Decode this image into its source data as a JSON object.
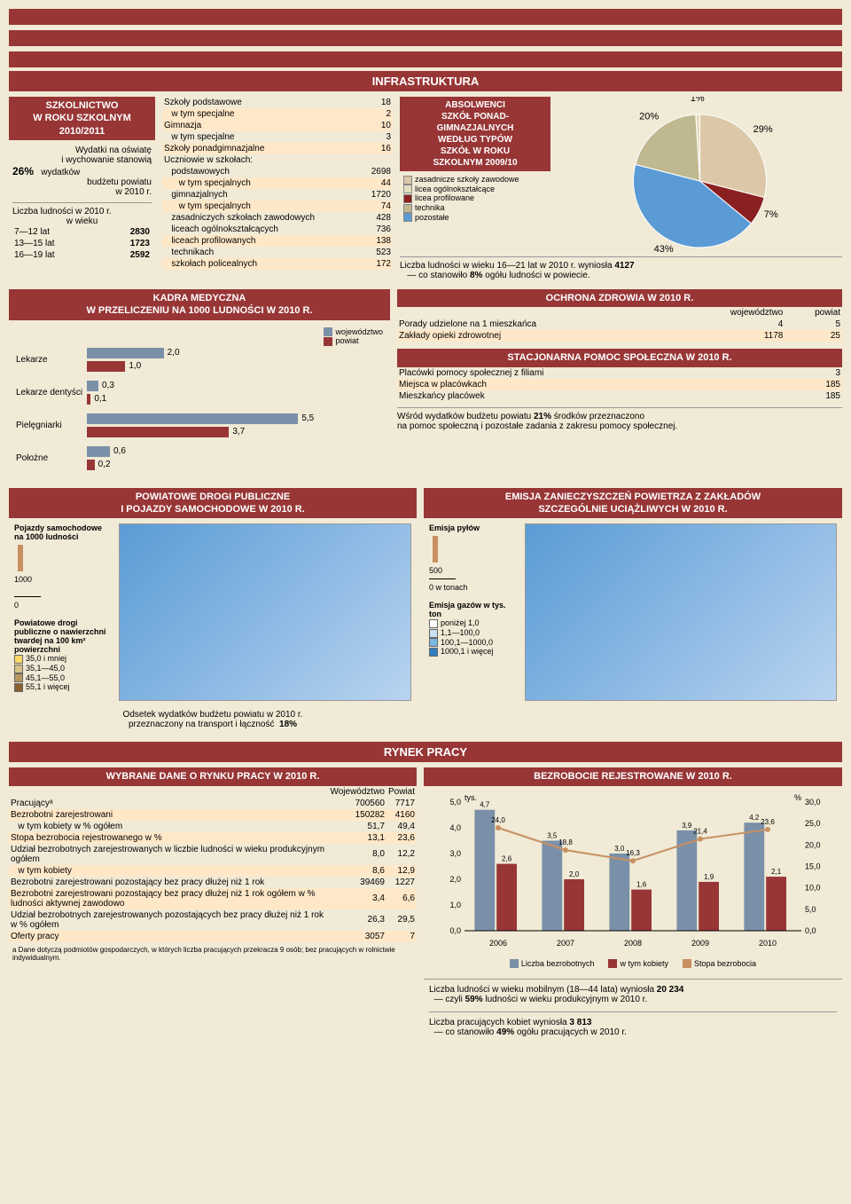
{
  "topSection": "INFRASTRUKTURA",
  "schoolBox": {
    "title": "SZKOLNICTWO\nW ROKU SZKOLNYM\n2010/2011",
    "line1": "Wydatki na oświatę",
    "line2": "i wychowanie stanowią",
    "pct": "26%",
    "line3": "wydatków",
    "line4": "budżetu powiatu",
    "line5": "w 2010 r.",
    "popLine": "Liczba ludności w 2010 r.",
    "popLine2": "w wieku",
    "ages": [
      {
        "r": "7—12 lat",
        "v": "2830"
      },
      {
        "r": "13—15 lat",
        "v": "1723"
      },
      {
        "r": "16—19 lat",
        "v": "2592"
      }
    ]
  },
  "schoolsTable": [
    {
      "l": "Szkoły podstawowe",
      "v": "18",
      "alt": false
    },
    {
      "l": "   w tym specjalne",
      "v": "2",
      "alt": true
    },
    {
      "l": "Gimnazja",
      "v": "10",
      "alt": true
    },
    {
      "l": "   w tym specjalne",
      "v": "3",
      "alt": false
    },
    {
      "l": "Szkoły ponadgimnazjalne",
      "v": "16",
      "alt": true
    },
    {
      "l": "Uczniowie w szkołach:",
      "v": "",
      "alt": false
    },
    {
      "l": "   podstawowych",
      "v": "2698",
      "alt": false
    },
    {
      "l": "      w tym specjalnych",
      "v": "44",
      "alt": true
    },
    {
      "l": "   gimnazjalnych",
      "v": "1720",
      "alt": false
    },
    {
      "l": "      w tym specjalnych",
      "v": "74",
      "alt": true
    },
    {
      "l": "   zasadniczych szkołach zawodowych",
      "v": "428",
      "alt": false
    },
    {
      "l": "   liceach ogólnokształcących",
      "v": "736",
      "alt": false
    },
    {
      "l": "   liceach profilowanych",
      "v": "138",
      "alt": true
    },
    {
      "l": "   technikach",
      "v": "523",
      "alt": false
    },
    {
      "l": "   szkołach policealnych",
      "v": "172",
      "alt": true
    }
  ],
  "gradBox": {
    "title": "ABSOLWENCI\nSZKÓŁ PONAD-\nGIMNAZJALNYCH\nWEDŁUG TYPÓW\nSZKÓŁ W ROKU\nSZKOLNYM 2009/10",
    "legend": [
      {
        "c": "#dcc8a8",
        "t": "zasadnicze szkoły zawodowe"
      },
      {
        "c": "#e8dcc0",
        "t": "licea ogólnokształcące"
      },
      {
        "c": "#8b2020",
        "t": "licea profilowane"
      },
      {
        "c": "#c0b890",
        "t": "technika"
      },
      {
        "c": "#5a9bd5",
        "t": "pozostałe"
      }
    ],
    "pie": {
      "slices": [
        {
          "pct": 29,
          "color": "#dcc8a8",
          "label": "29%"
        },
        {
          "pct": 7,
          "color": "#8b2020",
          "label": "7%"
        },
        {
          "pct": 43,
          "color": "#5a9bd5",
          "label": "43%"
        },
        {
          "pct": 20,
          "color": "#c0b890",
          "label": "20%"
        },
        {
          "pct": 1,
          "color": "#e8dcc0",
          "label": "1%"
        }
      ]
    },
    "footLine1": "Liczba ludności w wieku 16—21 lat w 2010 r. wyniosła",
    "footVal1": "4127",
    "footLine2": "— co stanowiło",
    "footPct": "8%",
    "footLine3": "ogółu ludności w powiecie."
  },
  "medBox": {
    "title": "KADRA MEDYCZNA\nW PRZELICZENIU NA 1000 LUDNOŚCI W 2010 R.",
    "legend": {
      "w": "województwo",
      "p": "powiat",
      "wc": "#7a90a8",
      "pc": "#983636"
    },
    "cats": [
      "Lekarze",
      "Lekarze dentyści",
      "Pielęgniarki",
      "Położne"
    ],
    "data": [
      {
        "w": 2.0,
        "p": 1.0
      },
      {
        "w": 0.3,
        "p": 0.1
      },
      {
        "w": 5.5,
        "p": 3.7
      },
      {
        "w": 0.6,
        "p": 0.2
      }
    ],
    "max": 6
  },
  "healthBox": {
    "title": "OCHRONA ZDROWIA W 2010 R.",
    "hdr": {
      "c1": "",
      "c2": "województwo",
      "c3": "powiat"
    },
    "rows": [
      {
        "l": "Porady udzielone na 1 mieszkańca",
        "w": "4",
        "p": "5"
      },
      {
        "l": "Zakłady opieki zdrowotnej",
        "w": "1178",
        "p": "25"
      }
    ]
  },
  "socialBox": {
    "title": "STACJONARNA POMOC SPOŁECZNA W 2010 R.",
    "rows": [
      {
        "l": "Placówki pomocy społecznej z filiami",
        "v": "3"
      },
      {
        "l": "Miejsca w placówkach",
        "v": "185"
      },
      {
        "l": "Mieszkańcy placówek",
        "v": "185"
      }
    ],
    "foot1a": "Wśród wydatków budżetu powiatu",
    "foot1pct": "21%",
    "foot1b": "środków przeznaczono",
    "foot2": "na pomoc społeczną i pozostałe zadania z zakresu pomocy społecznej."
  },
  "roadsBox": {
    "title": "POWIATOWE DROGI PUBLICZNE\nI POJAZDY SAMOCHODOWE W 2010 R.",
    "leftLegend": {
      "l1": "Pojazdy samochodowe na 1000 ludności",
      "l1v": "1000",
      "l2": "Powiatowe drogi publiczne o nawierzchni twardej na 100 km² powierzchni",
      "items": [
        {
          "c": "#ffd966",
          "t": "35,0 i mniej"
        },
        {
          "c": "#d6c088",
          "t": "35,1—45,0"
        },
        {
          "c": "#b89860",
          "t": "45,1—55,0"
        },
        {
          "c": "#8b6030",
          "t": "55,1 i więcej"
        }
      ]
    },
    "foot1": "Odsetek wydatków budżetu powiatu w 2010 r.",
    "foot2": "przeznaczony na transport i łączność",
    "footPct": "18%"
  },
  "emissionBox": {
    "title": "EMISJA ZANIECZYSZCZEŃ POWIETRZA Z ZAKŁADÓW\nSZCZEGÓLNIE UCIĄŻLIWYCH W 2010 R.",
    "leg1": {
      "h": "Emisja pyłów",
      "v": "500",
      "u": "0 w tonach"
    },
    "leg2": {
      "h": "Emisja gazów w tys. ton",
      "items": [
        {
          "c": "#ffffff",
          "t": "poniżej 1,0"
        },
        {
          "c": "#c8e0f0",
          "t": "1,1—100,0"
        },
        {
          "c": "#7ab8e0",
          "t": "100,1—1000,0"
        },
        {
          "c": "#3080c0",
          "t": "1000,1 i więcej"
        }
      ]
    }
  },
  "laborSection": "RYNEK PRACY",
  "laborTable": {
    "title": "WYBRANE DANE O RYNKU PRACY W 2010 R.",
    "hdr": {
      "c1": "",
      "c2": "Województwo",
      "c3": "Powiat"
    },
    "rows": [
      {
        "l": "Pracującyᵃ",
        "w": "700560",
        "p": "7717",
        "alt": false
      },
      {
        "l": "Bezrobotni zarejestrowani",
        "w": "150282",
        "p": "4160",
        "alt": true
      },
      {
        "l": "   w tym kobiety w % ogółem",
        "w": "51,7",
        "p": "49,4",
        "alt": false
      },
      {
        "l": "Stopa bezrobocia rejestrowanego w %",
        "w": "13,1",
        "p": "23,6",
        "alt": true
      },
      {
        "l": "Udział bezrobotnych zarejestrowanych w liczbie ludności w wieku produkcyjnym ogółem",
        "w": "8,0",
        "p": "12,2",
        "alt": false
      },
      {
        "l": "   w tym kobiety",
        "w": "8,6",
        "p": "12,9",
        "alt": true
      },
      {
        "l": "Bezrobotni zarejestrowani pozostający bez pracy dłużej niż 1 rok",
        "w": "39469",
        "p": "1227",
        "alt": false
      },
      {
        "l": "Bezrobotni zarejestrowani pozostający bez pracy dłużej niż 1 rok ogółem w % ludności aktywnej zawodowo",
        "w": "3,4",
        "p": "6,6",
        "alt": true
      },
      {
        "l": "Udział bezrobotnych zarejestrowanych pozostających bez pracy dłużej niż 1 rok w % ogółem",
        "w": "26,3",
        "p": "29,5",
        "alt": false
      },
      {
        "l": "Oferty pracy",
        "w": "3057",
        "p": "7",
        "alt": true
      }
    ],
    "footnote": "a Dane dotyczą podmiotów gospodarczych, w których liczba pracujących przekracza 9 osób; bez pracujących w rolnictwie indywidualnym."
  },
  "unempBox": {
    "title": "BEZROBOCIE REJESTROWANE W 2010 R.",
    "yLabelL": "tys.",
    "yLabelR": "%",
    "years": [
      "2006",
      "2007",
      "2008",
      "2009",
      "2010"
    ],
    "bars": [
      {
        "b1": 4.7,
        "b2": 2.6
      },
      {
        "b1": 3.5,
        "b2": 2.0
      },
      {
        "b1": 3.0,
        "b2": 1.6
      },
      {
        "b1": 3.9,
        "b2": 1.9
      },
      {
        "b1": 4.2,
        "b2": 2.1
      }
    ],
    "line": [
      24.0,
      18.8,
      16.3,
      21.4,
      23.6
    ],
    "barMax": 5,
    "lineMax": 30,
    "colors": {
      "b1": "#7a90a8",
      "b2": "#983636",
      "line": "#c89060"
    },
    "legend": [
      {
        "c": "#7a90a8",
        "t": "Liczba bezrobotnych"
      },
      {
        "c": "#983636",
        "t": "w tym kobiety"
      },
      {
        "c": "#c89060",
        "t": "Stopa bezrobocia"
      }
    ],
    "foot1a": "Liczba ludności w wieku mobilnym (18—44 lata) wyniosła",
    "foot1v": "20 234",
    "foot2a": "— czyli",
    "foot2pct": "59%",
    "foot2b": "ludności w wieku produkcyjnym w 2010 r.",
    "foot3a": "Liczba pracujących kobiet wyniosła",
    "foot3v": "3 813",
    "foot4a": "— co stanowiło",
    "foot4pct": "49%",
    "foot4b": "ogółu pracujących w 2010 r."
  }
}
